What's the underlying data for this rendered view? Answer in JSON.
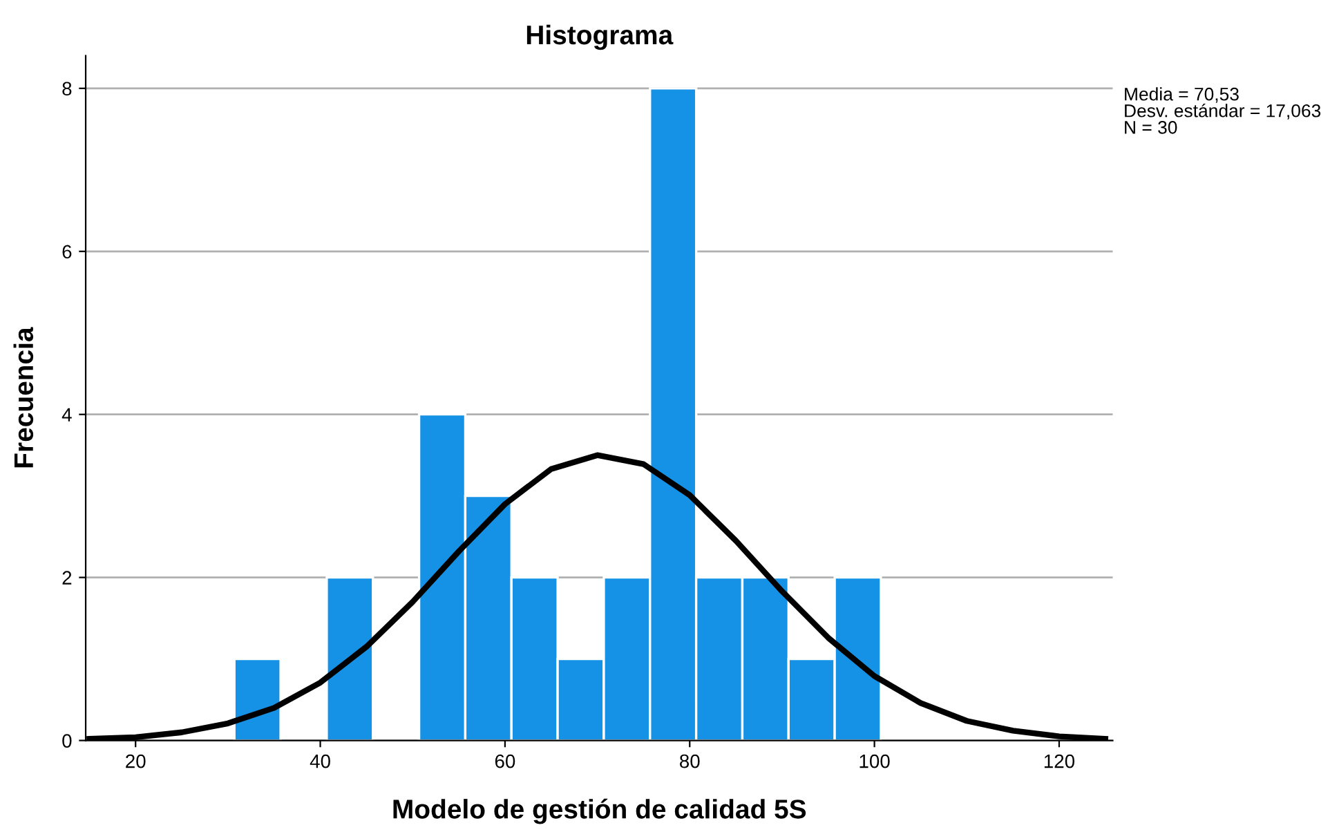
{
  "chart_data": {
    "type": "histogram",
    "title": "Histograma",
    "xlabel": "Modelo de gestión de calidad 5S",
    "ylabel": "Frecuencia",
    "bins": [
      30.7,
      35.7,
      40.7,
      45.7,
      50.7,
      55.7,
      60.7,
      65.7,
      70.7,
      75.7,
      80.7,
      85.7,
      90.7,
      95.7,
      100.7
    ],
    "values": [
      1,
      0,
      2,
      0,
      4,
      3,
      2,
      1,
      2,
      8,
      2,
      2,
      1,
      2
    ],
    "color": "#1591e6",
    "series": [
      {
        "type": "line",
        "color": "#000000",
        "x": [
          15,
          20,
          25,
          30,
          35,
          40,
          45,
          50,
          55,
          60,
          65,
          70,
          75,
          80,
          85,
          90,
          95,
          100,
          105,
          110,
          115,
          120,
          125
        ],
        "values": [
          0.02,
          0.04,
          0.1,
          0.21,
          0.4,
          0.71,
          1.15,
          1.7,
          2.32,
          2.9,
          3.33,
          3.5,
          3.39,
          3.01,
          2.45,
          1.83,
          1.26,
          0.79,
          0.46,
          0.24,
          0.12,
          0.05,
          0.02
        ]
      }
    ],
    "xlim": [
      14.6,
      125.8
    ],
    "ylim": [
      0,
      8.4
    ],
    "xticks": [
      20,
      40,
      60,
      80,
      100,
      120
    ],
    "yticks": [
      0,
      2,
      4,
      6,
      8
    ],
    "grid": "y",
    "legend": false,
    "annotations": [
      "Media = 70,53",
      "Desv. estándar = 17,063",
      "N = 30"
    ]
  }
}
